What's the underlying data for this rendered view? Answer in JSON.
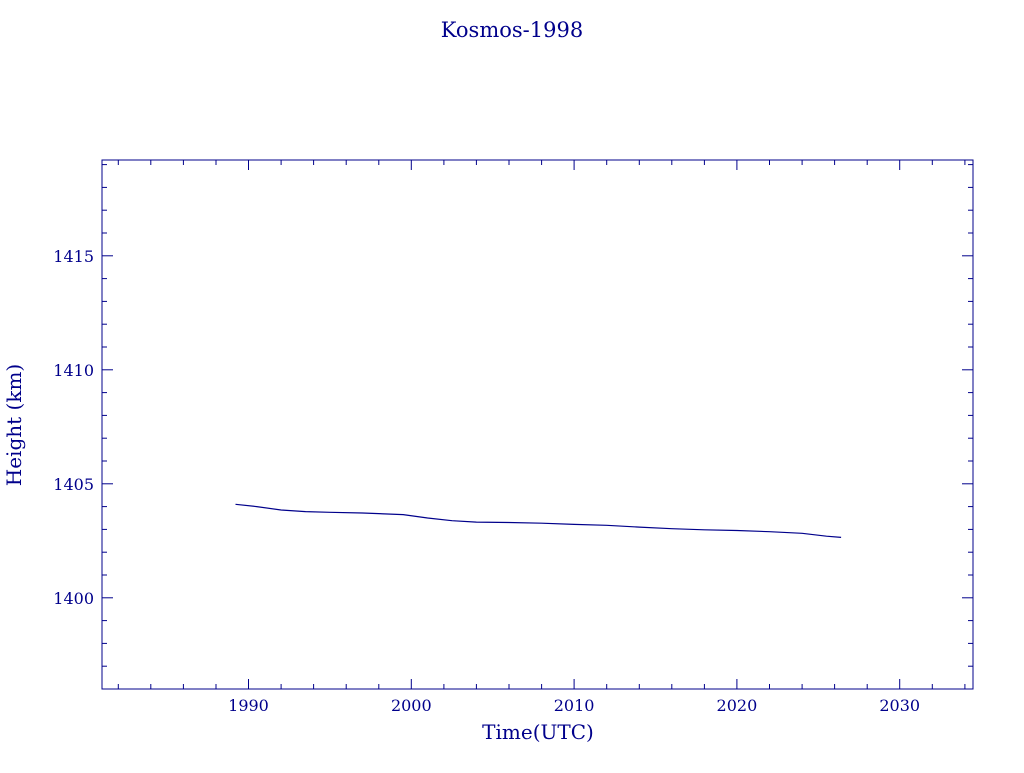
{
  "chart_data": {
    "type": "line",
    "title": "Kosmos-1998",
    "xlabel": "Time(UTC)",
    "ylabel": "Height (km)",
    "xlim": [
      1981,
      2034.5
    ],
    "ylim": [
      1396,
      1419.2
    ],
    "x_major_ticks": [
      1990,
      2000,
      2010,
      2020,
      2030
    ],
    "x_tick_labels": [
      "1990",
      "2000",
      "2010",
      "2020",
      "2030"
    ],
    "y_major_ticks": [
      1400,
      1405,
      1410,
      1415
    ],
    "y_tick_labels": [
      "1400",
      "1405",
      "1410",
      "1415"
    ],
    "grid": false,
    "color": "#00008b",
    "series": [
      {
        "x": [
          1989.2,
          1990.5,
          1992.0,
          1993.5,
          1995.0,
          1997.0,
          1999.5,
          2001.0,
          2002.5,
          2004.0,
          2006.0,
          2008.0,
          2010.0,
          2012.0,
          2014.0,
          2016.0,
          2018.0,
          2020.0,
          2022.0,
          2024.0,
          2025.5,
          2026.4
        ],
        "y": [
          1404.1,
          1404.0,
          1403.85,
          1403.78,
          1403.75,
          1403.72,
          1403.65,
          1403.5,
          1403.38,
          1403.32,
          1403.3,
          1403.27,
          1403.22,
          1403.18,
          1403.1,
          1403.03,
          1402.98,
          1402.95,
          1402.9,
          1402.83,
          1402.7,
          1402.65
        ]
      }
    ]
  }
}
